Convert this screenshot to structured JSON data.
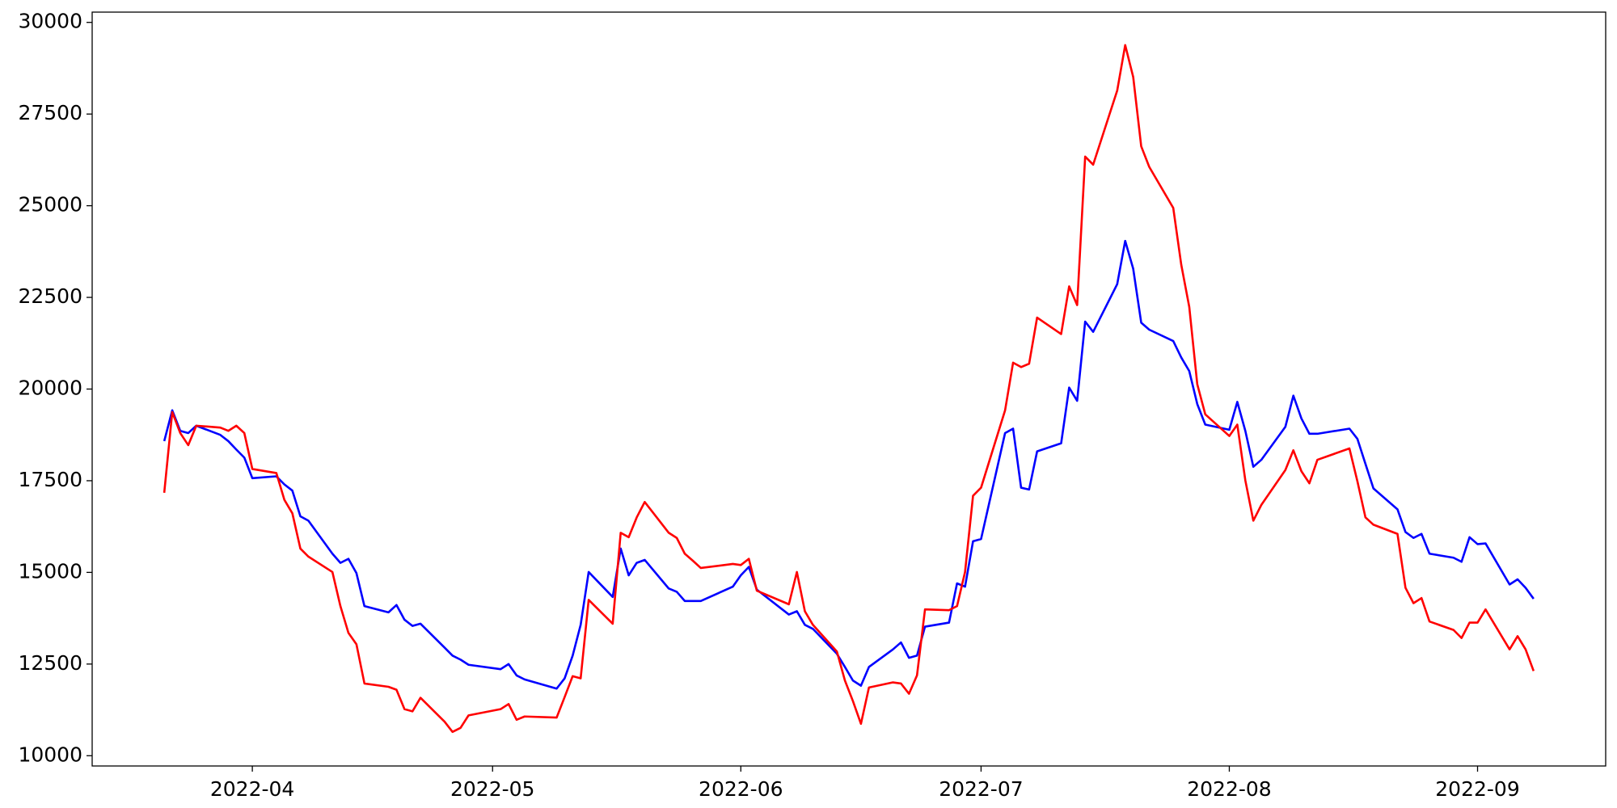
{
  "chart_data": {
    "type": "line",
    "x": [
      "2022-03-21",
      "2022-03-22",
      "2022-03-23",
      "2022-03-24",
      "2022-03-25",
      "2022-03-28",
      "2022-03-29",
      "2022-03-30",
      "2022-03-31",
      "2022-04-01",
      "2022-04-04",
      "2022-04-05",
      "2022-04-06",
      "2022-04-07",
      "2022-04-08",
      "2022-04-11",
      "2022-04-12",
      "2022-04-13",
      "2022-04-14",
      "2022-04-15",
      "2022-04-18",
      "2022-04-19",
      "2022-04-20",
      "2022-04-21",
      "2022-04-22",
      "2022-04-25",
      "2022-04-26",
      "2022-04-27",
      "2022-04-28",
      "2022-05-02",
      "2022-05-03",
      "2022-05-04",
      "2022-05-05",
      "2022-05-09",
      "2022-05-10",
      "2022-05-11",
      "2022-05-12",
      "2022-05-13",
      "2022-05-16",
      "2022-05-17",
      "2022-05-18",
      "2022-05-19",
      "2022-05-20",
      "2022-05-23",
      "2022-05-24",
      "2022-05-25",
      "2022-05-26",
      "2022-05-27",
      "2022-05-31",
      "2022-06-01",
      "2022-06-02",
      "2022-06-03",
      "2022-06-07",
      "2022-06-08",
      "2022-06-09",
      "2022-06-10",
      "2022-06-13",
      "2022-06-14",
      "2022-06-15",
      "2022-06-16",
      "2022-06-17",
      "2022-06-20",
      "2022-06-21",
      "2022-06-22",
      "2022-06-23",
      "2022-06-24",
      "2022-06-27",
      "2022-06-28",
      "2022-06-29",
      "2022-06-30",
      "2022-07-01",
      "2022-07-04",
      "2022-07-05",
      "2022-07-06",
      "2022-07-07",
      "2022-07-08",
      "2022-07-11",
      "2022-07-12",
      "2022-07-13",
      "2022-07-14",
      "2022-07-15",
      "2022-07-18",
      "2022-07-19",
      "2022-07-20",
      "2022-07-21",
      "2022-07-22",
      "2022-07-25",
      "2022-07-26",
      "2022-07-27",
      "2022-07-28",
      "2022-07-29",
      "2022-08-01",
      "2022-08-02",
      "2022-08-03",
      "2022-08-04",
      "2022-08-05",
      "2022-08-08",
      "2022-08-09",
      "2022-08-10",
      "2022-08-11",
      "2022-08-12",
      "2022-08-16",
      "2022-08-17",
      "2022-08-18",
      "2022-08-19",
      "2022-08-22",
      "2022-08-23",
      "2022-08-24",
      "2022-08-25",
      "2022-08-26",
      "2022-08-29",
      "2022-08-30",
      "2022-08-31",
      "2022-09-01",
      "2022-09-02",
      "2022-09-05",
      "2022-09-06",
      "2022-09-07",
      "2022-09-08"
    ],
    "series": [
      {
        "color": "#0000ff",
        "values": [
          18580,
          19420,
          18860,
          18800,
          19000,
          18750,
          18580,
          18350,
          18130,
          17570,
          17620,
          17400,
          17230,
          16530,
          16410,
          15510,
          15260,
          15370,
          14980,
          14080,
          13910,
          14110,
          13710,
          13540,
          13600,
          12950,
          12730,
          12620,
          12480,
          12360,
          12500,
          12190,
          12080,
          11830,
          12110,
          12730,
          13570,
          15010,
          14330,
          15650,
          14920,
          15260,
          15340,
          14560,
          14470,
          14220,
          14220,
          14220,
          14610,
          14920,
          15150,
          14530,
          13850,
          13940,
          13570,
          13460,
          12780,
          12420,
          12050,
          11910,
          12420,
          12900,
          13090,
          12670,
          12730,
          13520,
          13630,
          14700,
          14610,
          15850,
          15910,
          18800,
          18920,
          17310,
          17260,
          18300,
          18520,
          20040,
          19680,
          21840,
          21560,
          22860,
          24040,
          23280,
          21810,
          21620,
          21310,
          20860,
          20490,
          19590,
          19030,
          18890,
          19650,
          18860,
          17880,
          18070,
          18970,
          19820,
          19200,
          18780,
          18780,
          18920,
          18640,
          17960,
          17290,
          16720,
          16100,
          15940,
          16050,
          15510,
          15400,
          15290,
          15960,
          15770,
          15790,
          14670,
          14810,
          14580,
          14280
        ]
      },
      {
        "color": "#ff0000",
        "values": [
          17170,
          19370,
          18800,
          18470,
          19000,
          18950,
          18860,
          19000,
          18800,
          17820,
          17710,
          16980,
          16610,
          15650,
          15430,
          15010,
          14080,
          13350,
          13040,
          11970,
          11880,
          11800,
          11270,
          11210,
          11580,
          10930,
          10650,
          10760,
          11100,
          11270,
          11410,
          10980,
          11070,
          11040,
          11600,
          12170,
          12110,
          14250,
          13600,
          16080,
          15960,
          16500,
          16920,
          16080,
          15940,
          15510,
          15320,
          15120,
          15230,
          15200,
          15370,
          14500,
          14130,
          15010,
          13940,
          13570,
          12840,
          12050,
          11490,
          10870,
          11860,
          12000,
          11970,
          11690,
          12190,
          13990,
          13970,
          14080,
          15010,
          17090,
          17310,
          19420,
          20720,
          20600,
          20690,
          21950,
          21500,
          22800,
          22290,
          26340,
          26120,
          28140,
          29380,
          28510,
          26620,
          26060,
          24940,
          23390,
          22240,
          20130,
          19310,
          18720,
          19030,
          17510,
          16410,
          16840,
          17790,
          18330,
          17760,
          17430,
          18070,
          18380,
          17480,
          16500,
          16300,
          16050,
          14580,
          14160,
          14300,
          13660,
          13430,
          13210,
          13630,
          13630,
          13990,
          12900,
          13260,
          12900,
          12310
        ]
      }
    ],
    "xlim": [
      "2022-03-12",
      "2022-09-17"
    ],
    "xticks": [
      {
        "value": "2022-04-01",
        "label": "2022-04"
      },
      {
        "value": "2022-05-01",
        "label": "2022-05"
      },
      {
        "value": "2022-06-01",
        "label": "2022-06"
      },
      {
        "value": "2022-07-01",
        "label": "2022-07"
      },
      {
        "value": "2022-08-01",
        "label": "2022-08"
      },
      {
        "value": "2022-09-01",
        "label": "2022-09"
      }
    ],
    "ylim": [
      9720,
      30280
    ],
    "yticks": [
      10000,
      12500,
      15000,
      17500,
      20000,
      22500,
      25000,
      27500,
      30000
    ],
    "grid": false
  }
}
